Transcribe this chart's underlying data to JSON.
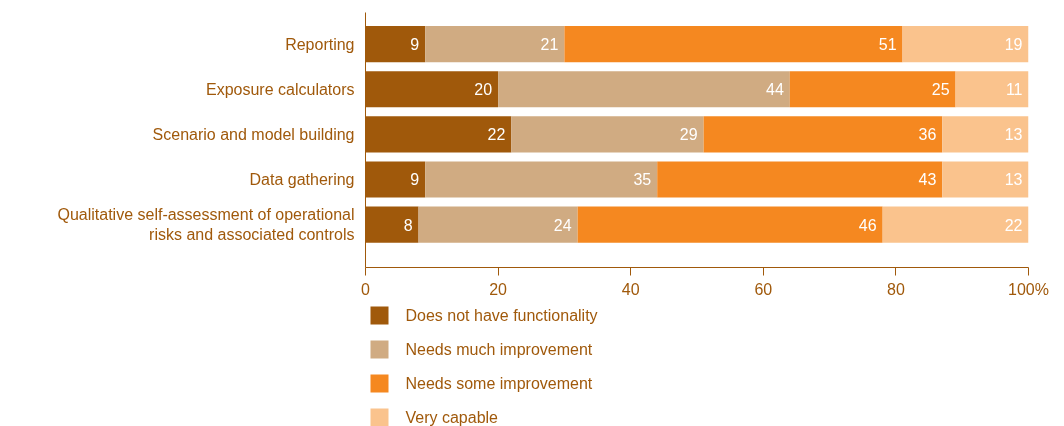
{
  "chart_data": {
    "type": "bar",
    "orientation": "horizontal",
    "stacked": true,
    "data_labels": true,
    "grid": false,
    "legend": "bottom",
    "categories": [
      "Reporting",
      "Exposure calculators",
      "Scenario and model building",
      "Data gathering",
      "Qualitative self-assessment of operational\nrisks and associated controls"
    ],
    "series": [
      {
        "name": "Does not have functionality",
        "color": "#a0590b",
        "values": [
          9,
          20,
          22,
          9,
          8
        ]
      },
      {
        "name": "Needs much improvement",
        "color": "#d0ab82",
        "values": [
          21,
          44,
          29,
          35,
          24
        ]
      },
      {
        "name": "Needs some improvement",
        "color": "#f58820",
        "values": [
          51,
          25,
          36,
          43,
          46
        ]
      },
      {
        "name": "Very capable",
        "color": "#fac38d",
        "values": [
          19,
          11,
          13,
          13,
          22
        ]
      }
    ],
    "xlim": [
      0,
      100
    ],
    "xticks": [
      0,
      20,
      40,
      60,
      80,
      {
        "value": 100,
        "label": "100%"
      }
    ]
  }
}
